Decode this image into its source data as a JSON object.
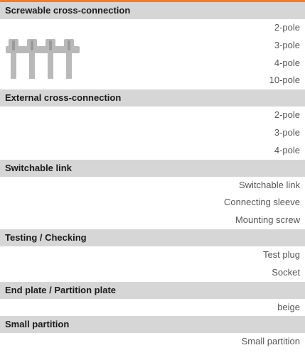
{
  "sections": [
    {
      "title": "Screwable cross-connection",
      "items": [
        "2-pole",
        "3-pole",
        "4-pole",
        "10-pole"
      ]
    },
    {
      "title": "External cross-connection",
      "items": [
        "2-pole",
        "3-pole",
        "4-pole"
      ]
    },
    {
      "title": "Switchable link",
      "items": [
        "Switchable link",
        "Connecting sleeve",
        "Mounting screw"
      ]
    },
    {
      "title": "Testing / Checking",
      "items": [
        "Test plug",
        "Socket"
      ]
    },
    {
      "title": "End plate / Partition plate",
      "items": [
        "beige"
      ]
    },
    {
      "title": "Small partition",
      "items": [
        "Small partition"
      ]
    }
  ]
}
